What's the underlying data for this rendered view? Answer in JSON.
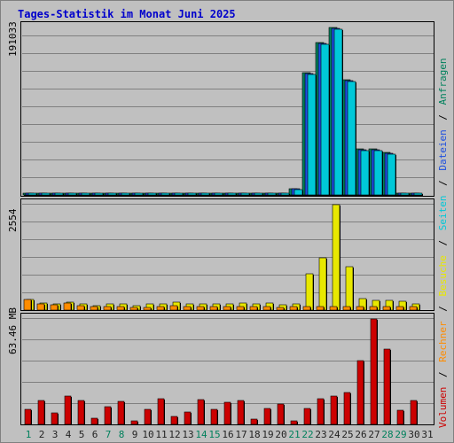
{
  "title": "Tages-Statistik im Monat Juni 2025",
  "colors": {
    "title": "#0000cc",
    "background": "#c0c0c0",
    "grid": "#808080",
    "anfragen": "#00805c",
    "dateien": "#1c4ee0",
    "seiten": "#00c8d8",
    "besuche": "#e8e800",
    "rechner": "#ff8c00",
    "volumen": "#cc0000",
    "day_weekday": "#222222",
    "day_weekend": "#00805c",
    "separator": "#000000"
  },
  "legend": {
    "anfragen": "Anfragen",
    "dateien": "Dateien",
    "seiten": "Seiten",
    "besuche": "Besuche",
    "rechner": "Rechner",
    "volumen": "Volumen",
    "sep": "/"
  },
  "chart_data": {
    "type": "bar",
    "days": [
      "1",
      "2",
      "3",
      "4",
      "5",
      "6",
      "7",
      "8",
      "9",
      "10",
      "11",
      "12",
      "13",
      "14",
      "15",
      "16",
      "17",
      "18",
      "19",
      "20",
      "21",
      "22",
      "23",
      "24",
      "25",
      "26",
      "27",
      "28",
      "29",
      "30",
      "31"
    ],
    "weekend_days": [
      "1",
      "7",
      "8",
      "14",
      "15",
      "21",
      "22",
      "28",
      "29"
    ],
    "panels": [
      {
        "ylabel": "191033",
        "ymax": 191033,
        "series": [
          {
            "name": "Anfragen",
            "color_key": "anfragen",
            "values": [
              1500,
              1500,
              1500,
              2500,
              1500,
              1500,
              1500,
              1500,
              1500,
              1500,
              1500,
              2200,
              1500,
              1500,
              1500,
              2500,
              2500,
              1500,
              1500,
              1500,
              7500,
              139000,
              174000,
              191033,
              131000,
              53000,
              53000,
              49000,
              1500,
              1500,
              0
            ]
          },
          {
            "name": "Dateien",
            "color_key": "dateien",
            "values": [
              1200,
              1200,
              1200,
              2000,
              1200,
              1200,
              1200,
              1200,
              1200,
              1200,
              1200,
              1800,
              1200,
              1200,
              1200,
              2000,
              2000,
              1200,
              1200,
              1200,
              7000,
              138000,
              173000,
              190000,
              130000,
              52000,
              52000,
              48000,
              1200,
              1200,
              0
            ]
          },
          {
            "name": "Seiten",
            "color_key": "seiten",
            "values": [
              1000,
              1000,
              1000,
              1600,
              1000,
              1000,
              1000,
              1000,
              1000,
              1000,
              1000,
              1500,
              1000,
              1000,
              1000,
              1600,
              1600,
              1000,
              1000,
              1000,
              6500,
              137000,
              172000,
              189000,
              129000,
              51000,
              51000,
              47000,
              1000,
              1000,
              0
            ]
          }
        ]
      },
      {
        "ylabel": "2554",
        "ymax": 2554,
        "series": [
          {
            "name": "Besuche",
            "color_key": "besuche",
            "values": [
              260,
              180,
              150,
              200,
              140,
              110,
              160,
              140,
              110,
              140,
              160,
              200,
              150,
              160,
              150,
              150,
              180,
              150,
              180,
              130,
              140,
              880,
              1260,
              2554,
              1050,
              270,
              230,
              230,
              220,
              160,
              0
            ]
          },
          {
            "name": "Rechner",
            "color_key": "rechner",
            "values": [
              260,
              160,
              130,
              180,
              110,
              80,
              80,
              80,
              70,
              70,
              80,
              110,
              80,
              80,
              80,
              80,
              80,
              80,
              80,
              70,
              80,
              80,
              80,
              80,
              80,
              80,
              80,
              80,
              80,
              80,
              0
            ]
          }
        ]
      },
      {
        "ylabel": "63.46 MB",
        "ymax": 63.46,
        "series": [
          {
            "name": "Volumen",
            "color_key": "volumen",
            "values": [
              8.8,
              14.5,
              6.7,
              17.2,
              14.4,
              3.6,
              10.6,
              13.6,
              2.3,
              8.8,
              15.3,
              4.8,
              7.5,
              15.1,
              9.2,
              13.4,
              14.4,
              3.1,
              9.5,
              12.0,
              2.0,
              9.7,
              15.7,
              17.3,
              19.3,
              38.5,
              63.46,
              45.2,
              8.4,
              14.5,
              0
            ]
          }
        ]
      }
    ]
  }
}
